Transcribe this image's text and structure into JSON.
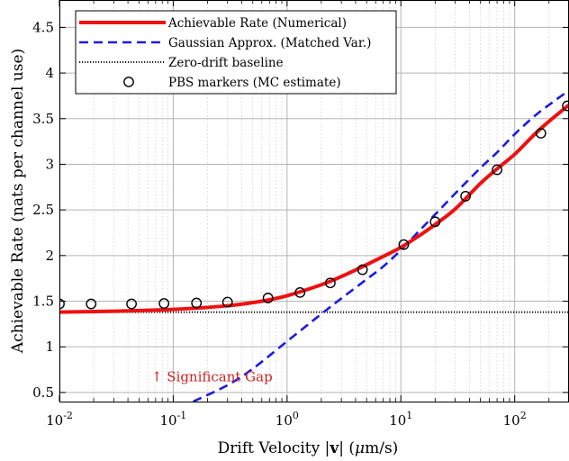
{
  "chart_data": {
    "type": "line",
    "xscale": "log",
    "xlim": [
      0.01,
      300
    ],
    "ylim": [
      0.4,
      4.8
    ],
    "grid": true,
    "legend_position": "top-left",
    "xlabel_parts": [
      "Drift Velocity |",
      "v",
      "| (",
      "μ",
      "m/s)"
    ],
    "ylabel": "Achievable Rate (nats per channel use)",
    "x_ticks": [
      {
        "value": 0.01,
        "base": "10",
        "exp": "-2"
      },
      {
        "value": 0.1,
        "base": "10",
        "exp": "-1"
      },
      {
        "value": 1,
        "base": "10",
        "exp": "0"
      },
      {
        "value": 10,
        "base": "10",
        "exp": "1"
      },
      {
        "value": 100,
        "base": "10",
        "exp": "2"
      }
    ],
    "y_ticks": [
      {
        "value": 0.5,
        "label": "0.5"
      },
      {
        "value": 1,
        "label": "1"
      },
      {
        "value": 1.5,
        "label": "1.5"
      },
      {
        "value": 2,
        "label": "2"
      },
      {
        "value": 2.5,
        "label": "2.5"
      },
      {
        "value": 3,
        "label": "3"
      },
      {
        "value": 3.5,
        "label": "3.5"
      },
      {
        "value": 4,
        "label": "4"
      },
      {
        "value": 4.5,
        "label": "4.5"
      }
    ],
    "series": [
      {
        "name": "Achievable Rate (Numerical)",
        "color": "#ee1111",
        "style": "solid",
        "x": [
          0.01,
          0.03,
          0.1,
          0.3,
          0.6,
          1,
          2,
          3,
          5,
          7,
          10,
          15,
          20,
          30,
          50,
          70,
          100,
          150,
          200,
          300
        ],
        "y": [
          1.38,
          1.39,
          1.41,
          1.45,
          1.5,
          1.56,
          1.68,
          1.77,
          1.9,
          1.99,
          2.09,
          2.23,
          2.34,
          2.51,
          2.79,
          2.95,
          3.11,
          3.33,
          3.47,
          3.65
        ]
      },
      {
        "name": "Gaussian Approx. (Matched Var.)",
        "color": "#1c1ce0",
        "style": "dashed",
        "x": [
          0.15,
          0.3,
          0.5,
          1,
          2,
          3,
          5,
          7,
          10,
          15,
          20,
          30,
          50,
          70,
          100,
          150,
          200,
          300
        ],
        "y": [
          0.4,
          0.58,
          0.76,
          1.06,
          1.36,
          1.53,
          1.74,
          1.88,
          2.06,
          2.29,
          2.45,
          2.68,
          2.96,
          3.13,
          3.33,
          3.53,
          3.65,
          3.81
        ]
      },
      {
        "name": "Zero-drift baseline",
        "color": "#000000",
        "style": "dotted",
        "x": [
          0.01,
          300
        ],
        "y": [
          1.38,
          1.38
        ]
      },
      {
        "name": "PBS markers (MC estimate)",
        "color": "#000000",
        "style": "markers",
        "x": [
          0.01,
          0.019,
          0.043,
          0.083,
          0.16,
          0.3,
          0.68,
          1.3,
          2.4,
          4.6,
          10.6,
          20,
          37,
          70,
          170,
          290
        ],
        "y": [
          1.47,
          1.47,
          1.47,
          1.475,
          1.48,
          1.49,
          1.535,
          1.595,
          1.7,
          1.845,
          2.12,
          2.37,
          2.65,
          2.94,
          3.34,
          3.64
        ]
      }
    ],
    "annotation": {
      "text": "↑ Significant Gap",
      "color": "#cc2222",
      "x": 0.064,
      "y": 0.62
    }
  }
}
